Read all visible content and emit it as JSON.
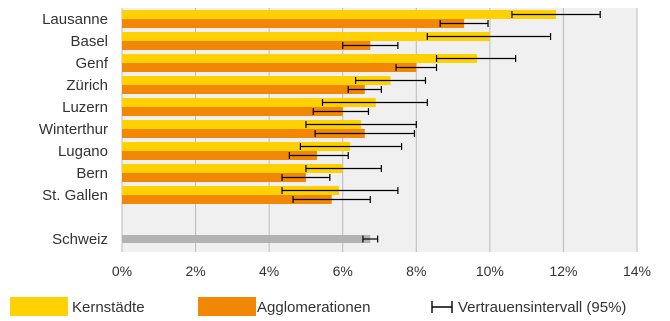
{
  "chart_data": {
    "type": "bar",
    "orientation": "horizontal",
    "categories": [
      "Lausanne",
      "Basel",
      "Genf",
      "Zürich",
      "Luzern",
      "Winterthur",
      "Lugano",
      "Bern",
      "St. Gallen"
    ],
    "series": [
      {
        "name": "Kernstädte",
        "color": "#FFD100",
        "values": [
          11.8,
          10.0,
          9.65,
          7.3,
          6.9,
          6.5,
          6.2,
          6.0,
          5.9
        ],
        "ci": [
          [
            10.6,
            13.0
          ],
          [
            8.3,
            11.65
          ],
          [
            8.55,
            10.7
          ],
          [
            6.35,
            8.25
          ],
          [
            5.45,
            8.3
          ],
          [
            5.0,
            8.0
          ],
          [
            4.85,
            7.6
          ],
          [
            5.0,
            7.05
          ],
          [
            4.35,
            7.5
          ]
        ]
      },
      {
        "name": "Agglomerationen",
        "color": "#F28705",
        "values": [
          9.3,
          6.75,
          8.0,
          6.6,
          6.0,
          6.6,
          5.3,
          5.0,
          5.7
        ],
        "ci": [
          [
            8.65,
            9.95
          ],
          [
            6.0,
            7.5
          ],
          [
            7.45,
            8.55
          ],
          [
            6.15,
            7.05
          ],
          [
            5.2,
            6.7
          ],
          [
            5.25,
            7.95
          ],
          [
            4.55,
            6.15
          ],
          [
            4.35,
            5.65
          ],
          [
            4.65,
            6.75
          ]
        ]
      }
    ],
    "total": {
      "label": "Schweiz",
      "value": 6.75,
      "color": "#B3B3B3",
      "ci": [
        6.55,
        6.95
      ]
    },
    "x_ticks": [
      "0%",
      "2%",
      "4%",
      "6%",
      "8%",
      "10%",
      "12%",
      "14%"
    ],
    "xlim": [
      0,
      14
    ],
    "grid": true,
    "legend": {
      "placement": "bottom",
      "items": [
        {
          "label": "Kernstädte",
          "kind": "box",
          "color": "#FFD100"
        },
        {
          "label": "Agglomerationen",
          "kind": "box",
          "color": "#F28705"
        },
        {
          "label": "Vertrauensintervall (95%)",
          "kind": "errorbar",
          "color": "#000000"
        }
      ]
    },
    "plot_background": "#F0F0F0",
    "grid_color": "#BBBBBB"
  }
}
